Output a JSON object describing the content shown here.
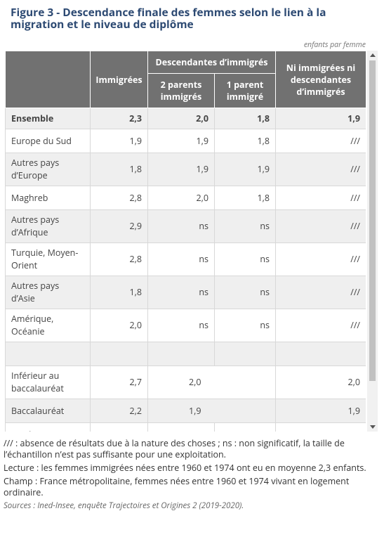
{
  "title": "Figure 3 - Descendance finale des femmes selon le lien à la migration et le niveau de diplôme",
  "unit": "enfants par femme",
  "table": {
    "header": [
      "Immigrées",
      "Descendantes d’immigrés",
      "2 parents immigrés",
      "1 parent immigré",
      "Ni immigrées ni descendantes d’immigrés"
    ],
    "rows": [
      [
        "Ensemble",
        "2,3",
        "2,0",
        "1,8",
        "1,9"
      ],
      [
        "Europe du Sud",
        "1,9",
        "1,9",
        "1,8",
        "///"
      ],
      [
        "Autres pays d’Europe",
        "1,8",
        "1,9",
        "1,9",
        "///"
      ],
      [
        "Maghreb",
        "2,8",
        "2,0",
        "1,8",
        "///"
      ],
      [
        "Autres pays d’Afrique",
        "2,9",
        "ns",
        "ns",
        "///"
      ],
      [
        "Turquie, Moyen-Orient",
        "2,8",
        "ns",
        "ns",
        "///"
      ],
      [
        "Autres pays d’Asie",
        "1,8",
        "ns",
        "ns",
        "///"
      ],
      [
        "Amérique, Océanie",
        "2,0",
        "ns",
        "ns",
        "///"
      ]
    ],
    "diploma_rows": [
      [
        "Inférieur au baccalauréat",
        "2,7",
        "2,0",
        "2,0"
      ],
      [
        "Baccalauréat",
        "2,2",
        "1,9",
        "1,9"
      ],
      [
        "Supérieur au"
      ]
    ]
  },
  "notes": [
    "/// : absence de résultats due à la nature des choses ; ns : non significatif, la taille de l’échantillon n’est pas suffisante pour une exploitation.",
    "Lecture : les femmes immigrées nées entre 1960 et 1974 ont eu en moyenne 2,3 enfants.",
    "Champ : France métropolitaine, femmes nées entre 1960 et 1974 vivant en logement ordinaire."
  ],
  "source": "Sources : Ined-Insee, enquête Trajectoires et Origines 2 (2019-2020)."
}
